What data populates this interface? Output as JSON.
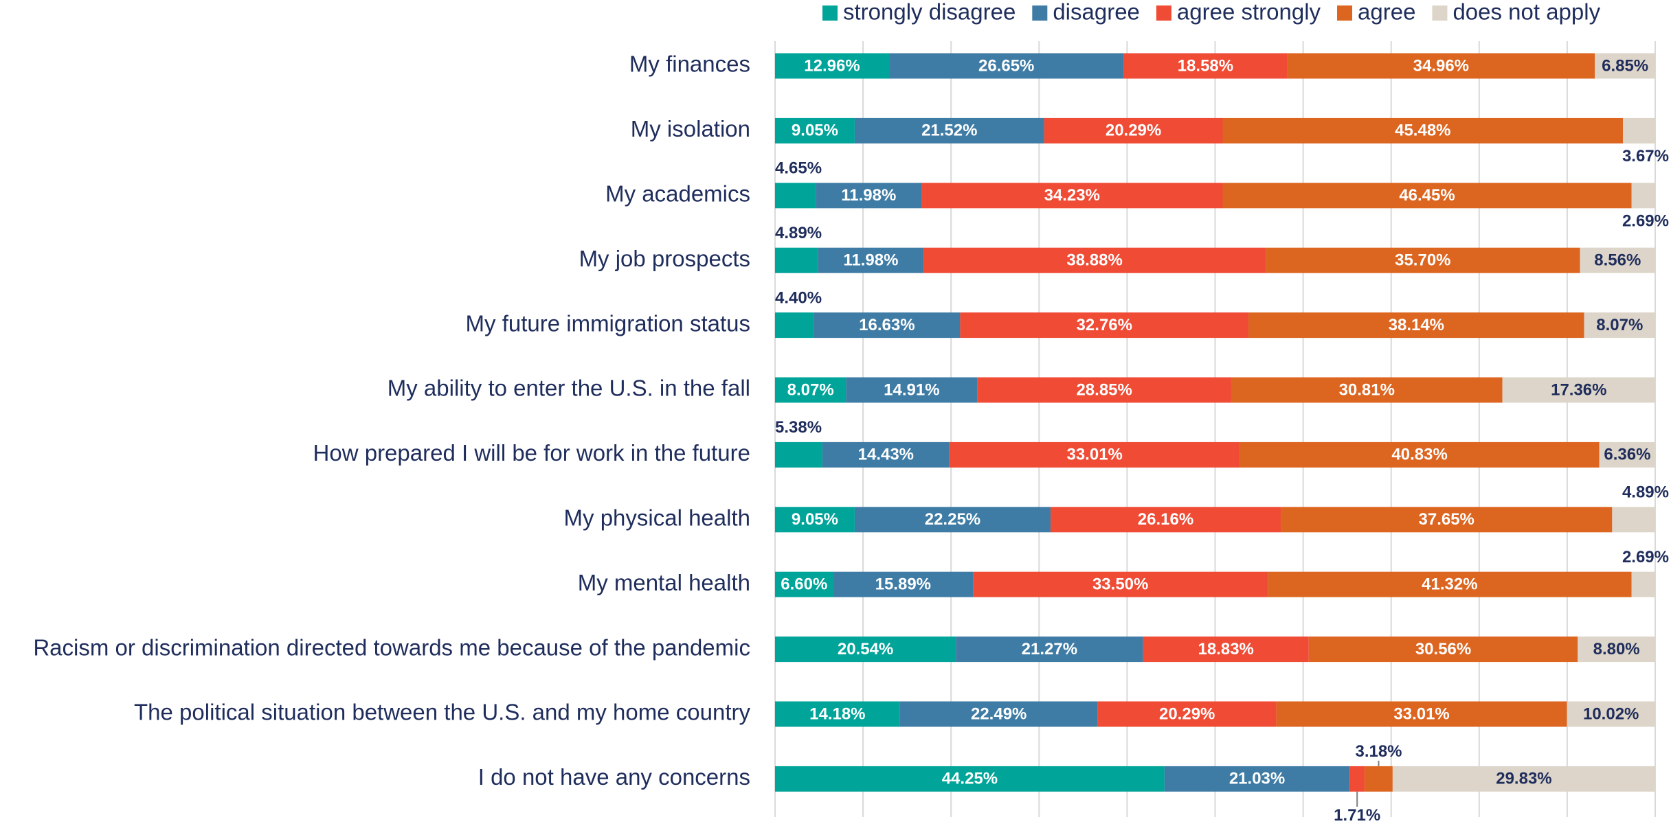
{
  "chart_data": {
    "type": "stacked_bar_horizontal",
    "categories": [
      "My finances",
      "My isolation",
      "My academics",
      "My job prospects",
      "My future immigration status",
      "My ability to enter the U.S. in the fall",
      "How prepared I will be for work in the future",
      "My physical health",
      "My mental health",
      "Racism or discrimination directed towards me because of the pandemic",
      "The political situation between the U.S. and my home country",
      "I do not have any concerns"
    ],
    "series": [
      {
        "name": "strongly disagree",
        "color": "#00a499",
        "values": [
          12.96,
          9.05,
          4.65,
          4.89,
          4.4,
          8.07,
          5.38,
          9.05,
          6.6,
          20.54,
          14.18,
          44.25
        ],
        "value_labels": [
          "12.96%",
          "9.05%",
          "4.65%",
          "4.89%",
          "4.40%",
          "8.07%",
          "5.38%",
          "9.05%",
          "6.60%",
          "20.54%",
          "14.18%",
          "44.25%"
        ]
      },
      {
        "name": "disagree",
        "color": "#3f7ca5",
        "values": [
          26.65,
          21.52,
          11.98,
          11.98,
          16.63,
          14.91,
          14.43,
          22.25,
          15.89,
          21.27,
          22.49,
          21.03
        ],
        "value_labels": [
          "26.65%",
          "21.52%",
          "11.98%",
          "11.98%",
          "16.63%",
          "14.91%",
          "14.43%",
          "22.25%",
          "15.89%",
          "21.27%",
          "22.49%",
          "21.03%"
        ]
      },
      {
        "name": "agree strongly",
        "color": "#ef4b35",
        "values": [
          18.58,
          20.29,
          34.23,
          38.88,
          32.76,
          28.85,
          33.01,
          26.16,
          33.5,
          18.83,
          20.29,
          1.71
        ],
        "value_labels": [
          "18.58%",
          "20.29%",
          "34.23%",
          "38.88%",
          "32.76%",
          "28.85%",
          "33.01%",
          "26.16%",
          "33.50%",
          "18.83%",
          "20.29%",
          "1.71%"
        ]
      },
      {
        "name": "agree",
        "color": "#dc6520",
        "values": [
          34.96,
          45.48,
          46.45,
          35.7,
          38.14,
          30.81,
          40.83,
          37.65,
          41.32,
          30.56,
          33.01,
          3.18
        ],
        "value_labels": [
          "34.96%",
          "45.48%",
          "46.45%",
          "35.70%",
          "38.14%",
          "30.81%",
          "40.83%",
          "37.65%",
          "41.32%",
          "30.56%",
          "33.01%",
          "3.18%"
        ]
      },
      {
        "name": "does not apply",
        "color": "#ddd5c9",
        "values": [
          6.85,
          3.67,
          2.69,
          8.56,
          8.07,
          17.36,
          6.36,
          4.89,
          2.69,
          8.8,
          10.02,
          29.83
        ],
        "value_labels": [
          "6.85%",
          "3.67%",
          "2.69%",
          "8.56%",
          "8.07%",
          "17.36%",
          "6.36%",
          "4.89%",
          "2.69%",
          "8.80%",
          "10.02%",
          "29.83%"
        ]
      }
    ],
    "xlim": [
      0,
      100
    ],
    "xticks": [
      0,
      10,
      20,
      30,
      40,
      50,
      60,
      70,
      80,
      90,
      100
    ],
    "grid": true,
    "legend": "top"
  }
}
